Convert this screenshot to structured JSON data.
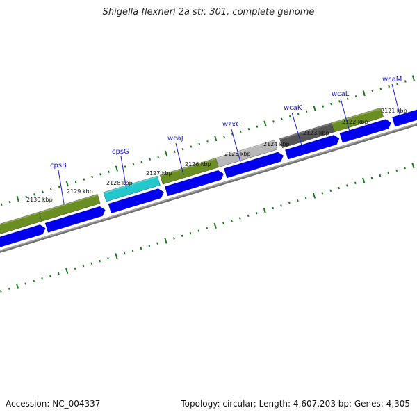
{
  "title": "Shigella flexneri 2a str. 301, complete genome",
  "accession": "Accession: NC_004337",
  "topology": "Topology: circular; Length: 4,607,203 bp; Genes: 4,305",
  "colors": {
    "tick": "#1a7a1a",
    "cds_arrow": "#0000ee",
    "backbone": "#888888",
    "olive": "#6b8e23",
    "cyan": "#22c8cc",
    "light_gray": "#b8b8b8",
    "dark_gray": "#555555",
    "label": "#1a1acc"
  },
  "scale_ticks": [
    {
      "label": "2130 kbp",
      "kbp": 2130
    },
    {
      "label": "2129 kbp",
      "kbp": 2129
    },
    {
      "label": "2128 kbp",
      "kbp": 2128
    },
    {
      "label": "2127 kbp",
      "kbp": 2127
    },
    {
      "label": "2126 kbp",
      "kbp": 2126
    },
    {
      "label": "2125 kbp",
      "kbp": 2125
    },
    {
      "label": "2124 kbp",
      "kbp": 2124
    },
    {
      "label": "2123 kbp",
      "kbp": 2123
    },
    {
      "label": "2122 kbp",
      "kbp": 2122
    },
    {
      "label": "2121 kbp",
      "kbp": 2121
    }
  ],
  "gene_labels": [
    {
      "name": "cpsB"
    },
    {
      "name": "cpsG"
    },
    {
      "name": "wcaJ"
    },
    {
      "name": "wzxC"
    },
    {
      "name": "wcaK"
    },
    {
      "name": "wcaL"
    },
    {
      "name": "wcaM"
    }
  ]
}
